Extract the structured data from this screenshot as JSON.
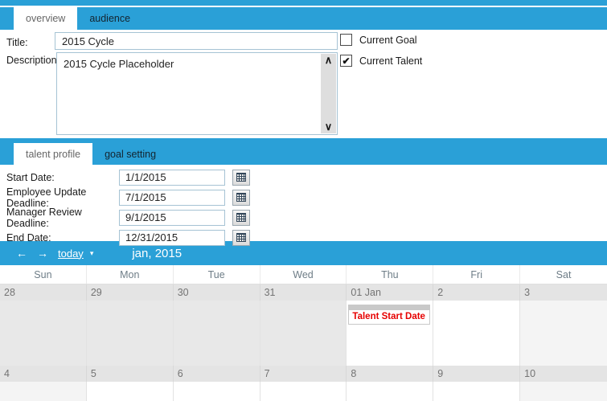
{
  "colors": {
    "accent": "#2AA0D7",
    "event_text": "#E60000"
  },
  "icons": {
    "scroll_up": "∧",
    "scroll_down": "∨",
    "check": "✔",
    "prev": "←",
    "next": "→",
    "caret": "▾"
  },
  "tabs": {
    "primary": [
      {
        "label": "overview",
        "active": true
      },
      {
        "label": "audience",
        "active": false
      }
    ],
    "secondary": [
      {
        "label": "talent profile",
        "active": true
      },
      {
        "label": "goal setting",
        "active": false
      }
    ]
  },
  "form": {
    "title_label": "Title:",
    "title_value": "2015 Cycle",
    "description_label": "Description:",
    "description_value": "2015 Cycle Placeholder",
    "checkboxes": [
      {
        "label": "Current Goal",
        "checked": false
      },
      {
        "label": "Current Talent",
        "checked": true
      }
    ]
  },
  "date_fields": [
    {
      "label": "Start Date:",
      "value": "1/1/2015"
    },
    {
      "label": "Employee Update Deadline:",
      "value": "7/1/2015"
    },
    {
      "label": "Manager Review Deadline:",
      "value": "9/1/2015"
    },
    {
      "label": "End Date:",
      "value": "12/31/2015"
    }
  ],
  "calendar": {
    "toolbar": {
      "today_label": "today",
      "title": "jan, 2015"
    },
    "day_headers": [
      "Sun",
      "Mon",
      "Tue",
      "Wed",
      "Thu",
      "Fri",
      "Sat"
    ],
    "weeks": [
      {
        "days": [
          {
            "num": "28",
            "kind": "other"
          },
          {
            "num": "29",
            "kind": "other"
          },
          {
            "num": "30",
            "kind": "other"
          },
          {
            "num": "31",
            "kind": "other"
          },
          {
            "num": "01 Jan",
            "kind": "day",
            "event": "Talent Start Date"
          },
          {
            "num": "2",
            "kind": "day"
          },
          {
            "num": "3",
            "kind": "weekend"
          }
        ]
      },
      {
        "days": [
          {
            "num": "4",
            "kind": "weekend"
          },
          {
            "num": "5",
            "kind": "day"
          },
          {
            "num": "6",
            "kind": "day"
          },
          {
            "num": "7",
            "kind": "day"
          },
          {
            "num": "8",
            "kind": "day"
          },
          {
            "num": "9",
            "kind": "day"
          },
          {
            "num": "10",
            "kind": "weekend"
          }
        ]
      }
    ]
  }
}
